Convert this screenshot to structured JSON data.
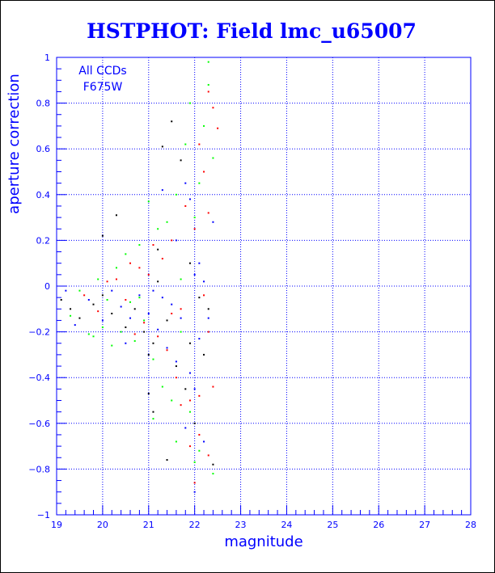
{
  "chart_data": {
    "type": "scatter",
    "title": "HSTPHOT: Field lmc_u65007",
    "xlabel": "magnitude",
    "ylabel": "aperture correction",
    "xlim": [
      19,
      28
    ],
    "ylim": [
      -1,
      1
    ],
    "x_ticks": [
      19,
      20,
      21,
      22,
      23,
      24,
      25,
      26,
      27,
      28
    ],
    "y_ticks": [
      -1,
      -0.8,
      -0.6,
      -0.4,
      -0.2,
      0,
      0.2,
      0.4,
      0.6,
      0.8,
      1
    ],
    "x_tick_labels": [
      "19",
      "20",
      "21",
      "22",
      "23",
      "24",
      "25",
      "26",
      "27",
      "28"
    ],
    "y_tick_labels": [
      "−1",
      "−0.8",
      "−0.6",
      "−0.4",
      "−0.2",
      "0",
      "0.2",
      "0.4",
      "0.6",
      "0.8",
      "1"
    ],
    "grid": true,
    "annotations": [
      "All CCDs",
      "F675W"
    ],
    "series": [
      {
        "color": "#000000",
        "points": [
          [
            19.1,
            -0.06
          ],
          [
            19.3,
            -0.1
          ],
          [
            19.5,
            -0.14
          ],
          [
            19.8,
            -0.08
          ],
          [
            20.0,
            -0.04
          ],
          [
            20.2,
            -0.12
          ],
          [
            20.3,
            0.31
          ],
          [
            20.5,
            -0.18
          ],
          [
            20.7,
            -0.1
          ],
          [
            20.9,
            -0.2
          ],
          [
            21.0,
            -0.3
          ],
          [
            21.1,
            -0.25
          ],
          [
            21.2,
            0.02
          ],
          [
            21.3,
            0.61
          ],
          [
            21.4,
            -0.15
          ],
          [
            21.5,
            0.72
          ],
          [
            21.6,
            -0.35
          ],
          [
            21.7,
            0.55
          ],
          [
            21.8,
            -0.45
          ],
          [
            21.9,
            -0.25
          ],
          [
            22.0,
            -0.6
          ],
          [
            22.1,
            -0.05
          ],
          [
            22.2,
            -0.3
          ],
          [
            22.3,
            -0.1
          ],
          [
            20.0,
            0.22
          ],
          [
            21.0,
            -0.47
          ],
          [
            21.4,
            -0.76
          ],
          [
            21.1,
            -0.55
          ],
          [
            22.4,
            -0.78
          ],
          [
            21.9,
            0.1
          ],
          [
            21.2,
            0.16
          ]
        ]
      },
      {
        "color": "#ff0000",
        "points": [
          [
            19.6,
            -0.04
          ],
          [
            19.9,
            -0.11
          ],
          [
            20.1,
            0.02
          ],
          [
            20.3,
            0.03
          ],
          [
            20.5,
            -0.06
          ],
          [
            20.6,
            0.1
          ],
          [
            20.8,
            0.08
          ],
          [
            20.9,
            -0.16
          ],
          [
            21.0,
            0.05
          ],
          [
            21.1,
            0.18
          ],
          [
            21.2,
            -0.22
          ],
          [
            21.3,
            0.12
          ],
          [
            21.4,
            -0.28
          ],
          [
            21.5,
            0.2
          ],
          [
            21.6,
            -0.4
          ],
          [
            21.7,
            -0.1
          ],
          [
            21.8,
            0.35
          ],
          [
            21.9,
            -0.5
          ],
          [
            22.0,
            0.25
          ],
          [
            22.1,
            -0.65
          ],
          [
            22.2,
            0.5
          ],
          [
            22.3,
            -0.2
          ],
          [
            22.4,
            0.78
          ],
          [
            22.5,
            0.69
          ],
          [
            22.3,
            0.85
          ],
          [
            22.1,
            -0.48
          ],
          [
            22.2,
            -0.04
          ],
          [
            22.4,
            -0.44
          ],
          [
            22.1,
            0.62
          ],
          [
            21.9,
            -0.7
          ],
          [
            22.0,
            -0.86
          ],
          [
            22.3,
            0.32
          ],
          [
            20.7,
            -0.21
          ],
          [
            21.5,
            -0.12
          ],
          [
            22.3,
            -0.74
          ],
          [
            21.7,
            -0.52
          ]
        ]
      },
      {
        "color": "#0000ff",
        "points": [
          [
            19.2,
            -0.02
          ],
          [
            19.4,
            -0.17
          ],
          [
            19.7,
            -0.06
          ],
          [
            20.0,
            -0.15
          ],
          [
            20.2,
            -0.02
          ],
          [
            20.4,
            -0.09
          ],
          [
            20.6,
            -0.14
          ],
          [
            20.8,
            -0.04
          ],
          [
            21.0,
            -0.12
          ],
          [
            21.1,
            -0.02
          ],
          [
            21.2,
            -0.19
          ],
          [
            21.3,
            -0.05
          ],
          [
            21.4,
            -0.27
          ],
          [
            21.5,
            -0.08
          ],
          [
            21.6,
            -0.33
          ],
          [
            21.7,
            -0.14
          ],
          [
            21.8,
            0.45
          ],
          [
            21.9,
            -0.38
          ],
          [
            22.0,
            0.05
          ],
          [
            22.1,
            -0.23
          ],
          [
            22.2,
            0.02
          ],
          [
            22.3,
            -0.14
          ],
          [
            22.4,
            0.28
          ],
          [
            21.8,
            -0.62
          ],
          [
            22.0,
            -0.9
          ],
          [
            21.9,
            0.38
          ],
          [
            22.0,
            -0.45
          ],
          [
            21.3,
            0.42
          ],
          [
            22.2,
            -0.68
          ],
          [
            20.5,
            -0.25
          ],
          [
            21.6,
            0.2
          ],
          [
            22.1,
            0.1
          ]
        ]
      },
      {
        "color": "#00ff00",
        "points": [
          [
            19.3,
            -0.13
          ],
          [
            19.5,
            -0.02
          ],
          [
            19.7,
            -0.21
          ],
          [
            19.9,
            0.03
          ],
          [
            20.0,
            -0.18
          ],
          [
            20.1,
            -0.06
          ],
          [
            20.3,
            0.08
          ],
          [
            20.4,
            -0.2
          ],
          [
            20.5,
            0.14
          ],
          [
            20.6,
            -0.07
          ],
          [
            20.7,
            -0.24
          ],
          [
            20.8,
            0.18
          ],
          [
            20.9,
            -0.15
          ],
          [
            21.0,
            0.37
          ],
          [
            21.1,
            -0.32
          ],
          [
            21.2,
            0.25
          ],
          [
            21.3,
            -0.44
          ],
          [
            21.4,
            0.28
          ],
          [
            21.5,
            -0.5
          ],
          [
            21.6,
            0.4
          ],
          [
            21.7,
            -0.2
          ],
          [
            21.8,
            0.62
          ],
          [
            21.9,
            -0.55
          ],
          [
            22.0,
            0.3
          ],
          [
            22.1,
            -0.72
          ],
          [
            22.2,
            0.7
          ],
          [
            22.3,
            0.98
          ],
          [
            22.4,
            -0.82
          ],
          [
            22.3,
            0.88
          ],
          [
            21.7,
            0.03
          ],
          [
            20.2,
            -0.26
          ],
          [
            21.1,
            -0.58
          ],
          [
            22.0,
            -0.77
          ],
          [
            22.4,
            0.56
          ],
          [
            21.6,
            -0.68
          ],
          [
            20.8,
            -0.05
          ],
          [
            22.1,
            0.45
          ],
          [
            19.8,
            -0.22
          ],
          [
            21.9,
            0.8
          ]
        ]
      }
    ]
  }
}
